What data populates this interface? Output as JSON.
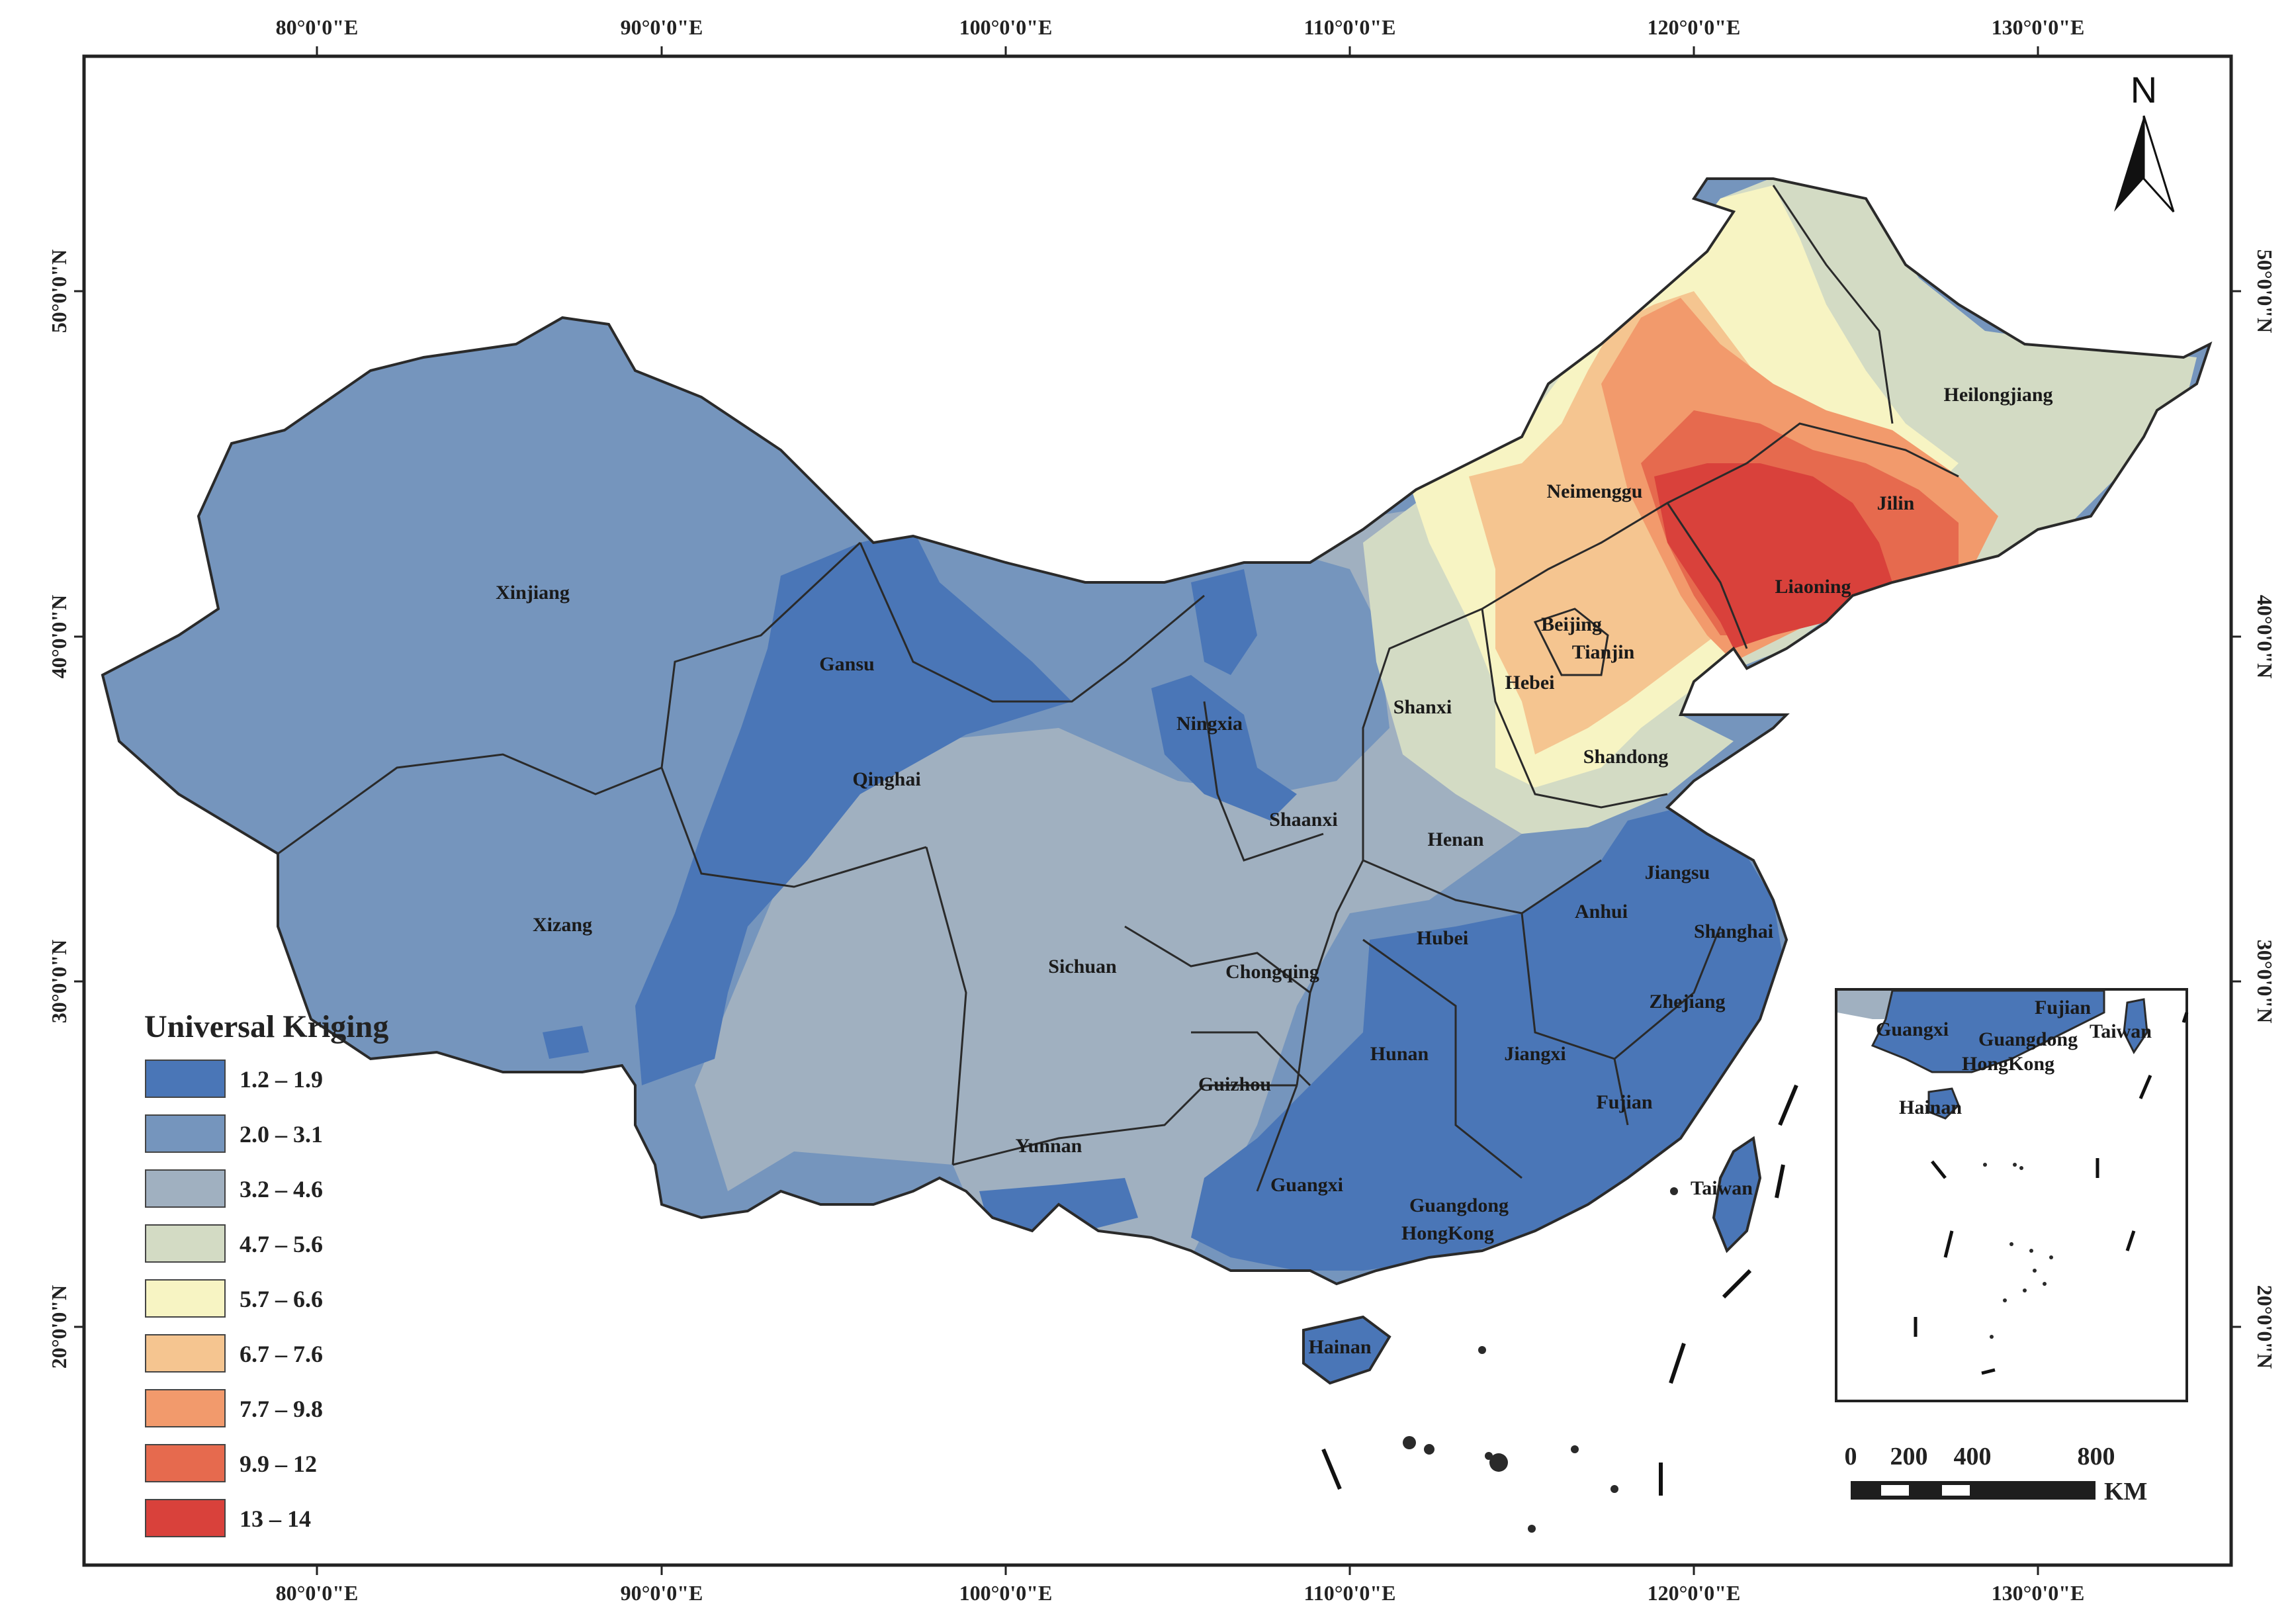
{
  "colors": {
    "c1": "#4a76b7",
    "c2": "#7595bd",
    "c3": "#a0b0c0",
    "c4": "#d3dbc4",
    "c5": "#f7f4c3",
    "c6": "#f5c590",
    "c7": "#f29a6c",
    "c8": "#e66a4e",
    "c9": "#d9413b",
    "border": "#2a2a2a"
  },
  "axes": {
    "top_labels": [
      "80°0'0\"E",
      "90°0'0\"E",
      "100°0'0\"E",
      "110°0'0\"E",
      "120°0'0\"E",
      "130°0'0\"E"
    ],
    "bottom_labels": [
      "80°0'0\"E",
      "90°0'0\"E",
      "100°0'0\"E",
      "110°0'0\"E",
      "120°0'0\"E",
      "130°0'0\"E"
    ],
    "left_labels": [
      "50°0'0\"N",
      "40°0'0\"N",
      "30°0'0\"N",
      "20°0'0\"N"
    ],
    "right_labels": [
      "50°0'0\"N",
      "40°0'0\"N",
      "30°0'0\"N",
      "20°0'0\"N"
    ]
  },
  "north": {
    "label": "N"
  },
  "legend": {
    "title": "Universal Kriging",
    "items": [
      {
        "label": "1.2 – 1.9",
        "color": "#4a76b7"
      },
      {
        "label": "2.0 – 3.1",
        "color": "#7595bd"
      },
      {
        "label": "3.2 – 4.6",
        "color": "#a0b0c0"
      },
      {
        "label": "4.7 – 5.6",
        "color": "#d3dbc4"
      },
      {
        "label": "5.7 – 6.6",
        "color": "#f7f4c3"
      },
      {
        "label": "6.7 – 7.6",
        "color": "#f5c590"
      },
      {
        "label": "7.7 – 9.8",
        "color": "#f29a6c"
      },
      {
        "label": "9.9 – 12",
        "color": "#e66a4e"
      },
      {
        "label": "13 – 14",
        "color": "#d9413b"
      }
    ]
  },
  "scale_bar": {
    "ticks": [
      "0",
      "200",
      "400",
      "800"
    ],
    "unit": "KM"
  },
  "provinces": {
    "xinjiang": "Xinjiang",
    "xizang": "Xizang",
    "gansu": "Gansu",
    "qinghai": "Qinghai",
    "ningxia": "Ningxia",
    "sichuan": "Sichuan",
    "chongqing": "Chongqing",
    "yunnan": "Yunnan",
    "guizhou": "Guizhou",
    "guangxi": "Guangxi",
    "hainan": "Hainan",
    "shaanxi": "Shaanxi",
    "shanxi": "Shanxi",
    "henan": "Henan",
    "hubei": "Hubei",
    "hunan": "Hunan",
    "jiangxi": "Jiangxi",
    "guangdong": "Guangdong",
    "hongkong": "HongKong",
    "fujian": "Fujian",
    "taiwan": "Taiwan",
    "zhejiang": "Zhejiang",
    "shanghai": "Shanghai",
    "jiangsu": "Jiangsu",
    "anhui": "Anhui",
    "shandong": "Shandong",
    "hebei": "Hebei",
    "beijing": "Beijing",
    "tianjin": "Tianjin",
    "liaoning": "Liaoning",
    "jilin": "Jilin",
    "heilongjiang": "Heilongjiang",
    "neimenggu": "Neimenggu"
  },
  "inset": {
    "guangxi": "Guangxi",
    "guangdong": "Guangdong",
    "hongkong": "HongKong",
    "fujian": "Fujian",
    "taiwan": "Taiwan",
    "hainan": "Hainan"
  }
}
